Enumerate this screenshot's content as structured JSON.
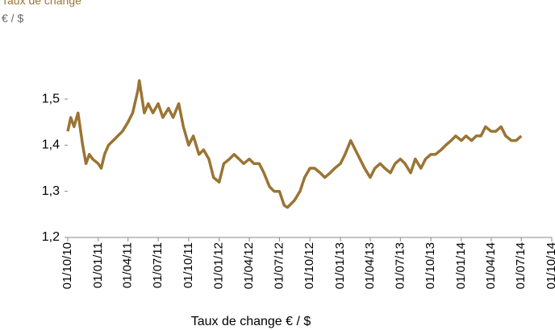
{
  "chart_data": {
    "type": "line",
    "title": "Taux de change",
    "subtitle": "€ / $",
    "x_label": "Taux  de change € / $",
    "color": "#9b7433",
    "xlim": [
      "2010-10-01",
      "2014-10-01"
    ],
    "xticks": [
      {
        "value": "2010-10-01",
        "label": "01/10/10"
      },
      {
        "value": "2011-01-01",
        "label": "01/01/11"
      },
      {
        "value": "2011-04-01",
        "label": "01/04/11"
      },
      {
        "value": "2011-07-01",
        "label": "01/07/11"
      },
      {
        "value": "2011-10-01",
        "label": "01/10/11"
      },
      {
        "value": "2012-01-01",
        "label": "01/01/12"
      },
      {
        "value": "2012-04-01",
        "label": "01/04/12"
      },
      {
        "value": "2012-07-01",
        "label": "01/07/12"
      },
      {
        "value": "2012-10-01",
        "label": "01/10/12"
      },
      {
        "value": "2013-01-01",
        "label": "01/01/13"
      },
      {
        "value": "2013-04-01",
        "label": "01/04/13"
      },
      {
        "value": "2013-07-01",
        "label": "01/07/13"
      },
      {
        "value": "2013-10-01",
        "label": "01/10/13"
      },
      {
        "value": "2014-01-01",
        "label": "01/01/14"
      },
      {
        "value": "2014-04-01",
        "label": "01/04/14"
      },
      {
        "value": "2014-07-01",
        "label": "01/07/14"
      },
      {
        "value": "2014-10-01",
        "label": "01/10/14"
      }
    ],
    "ylim": [
      1.2,
      1.55
    ],
    "yticks": [
      {
        "value": 1.2,
        "label": "1,2"
      },
      {
        "value": 1.3,
        "label": "1,3"
      },
      {
        "value": 1.4,
        "label": "1,4"
      },
      {
        "value": 1.5,
        "label": "1,5"
      }
    ],
    "x": [
      "2010-10-01",
      "2010-10-10",
      "2010-10-20",
      "2010-11-01",
      "2010-11-15",
      "2010-11-25",
      "2010-12-05",
      "2010-12-15",
      "2011-01-01",
      "2011-01-10",
      "2011-01-20",
      "2011-02-01",
      "2011-02-15",
      "2011-03-01",
      "2011-03-15",
      "2011-04-01",
      "2011-04-15",
      "2011-05-01",
      "2011-05-05",
      "2011-05-20",
      "2011-06-01",
      "2011-06-15",
      "2011-07-01",
      "2011-07-15",
      "2011-08-01",
      "2011-08-15",
      "2011-09-01",
      "2011-09-15",
      "2011-10-01",
      "2011-10-15",
      "2011-11-01",
      "2011-11-15",
      "2011-12-01",
      "2011-12-15",
      "2012-01-01",
      "2012-01-15",
      "2012-02-01",
      "2012-02-15",
      "2012-03-01",
      "2012-03-15",
      "2012-04-01",
      "2012-04-15",
      "2012-05-01",
      "2012-05-15",
      "2012-06-01",
      "2012-06-15",
      "2012-07-01",
      "2012-07-15",
      "2012-07-25",
      "2012-08-15",
      "2012-09-01",
      "2012-09-15",
      "2012-10-01",
      "2012-10-15",
      "2012-11-01",
      "2012-11-15",
      "2012-12-01",
      "2012-12-15",
      "2013-01-01",
      "2013-01-15",
      "2013-02-01",
      "2013-02-15",
      "2013-03-01",
      "2013-03-15",
      "2013-04-01",
      "2013-04-15",
      "2013-05-01",
      "2013-05-15",
      "2013-06-01",
      "2013-06-15",
      "2013-07-01",
      "2013-07-15",
      "2013-08-01",
      "2013-08-15",
      "2013-09-01",
      "2013-09-15",
      "2013-10-01",
      "2013-10-15",
      "2013-11-01",
      "2013-11-15",
      "2013-12-01",
      "2013-12-15",
      "2014-01-01",
      "2014-01-15",
      "2014-02-01",
      "2014-02-15",
      "2014-03-01",
      "2014-03-15",
      "2014-04-01",
      "2014-04-15",
      "2014-05-01",
      "2014-05-15",
      "2014-06-01",
      "2014-06-15",
      "2014-07-01"
    ],
    "values": [
      1.43,
      1.46,
      1.44,
      1.47,
      1.4,
      1.36,
      1.38,
      1.37,
      1.36,
      1.35,
      1.38,
      1.4,
      1.41,
      1.42,
      1.43,
      1.45,
      1.47,
      1.52,
      1.54,
      1.47,
      1.49,
      1.47,
      1.49,
      1.46,
      1.48,
      1.46,
      1.49,
      1.44,
      1.4,
      1.42,
      1.38,
      1.39,
      1.37,
      1.33,
      1.32,
      1.36,
      1.37,
      1.38,
      1.37,
      1.36,
      1.37,
      1.36,
      1.36,
      1.34,
      1.31,
      1.3,
      1.3,
      1.27,
      1.265,
      1.28,
      1.3,
      1.33,
      1.35,
      1.35,
      1.34,
      1.33,
      1.34,
      1.35,
      1.36,
      1.38,
      1.41,
      1.39,
      1.37,
      1.35,
      1.33,
      1.35,
      1.36,
      1.35,
      1.34,
      1.36,
      1.37,
      1.36,
      1.34,
      1.37,
      1.35,
      1.37,
      1.38,
      1.38,
      1.39,
      1.4,
      1.41,
      1.42,
      1.41,
      1.42,
      1.41,
      1.42,
      1.42,
      1.44,
      1.43,
      1.43,
      1.44,
      1.42,
      1.41,
      1.41,
      1.42
    ]
  }
}
